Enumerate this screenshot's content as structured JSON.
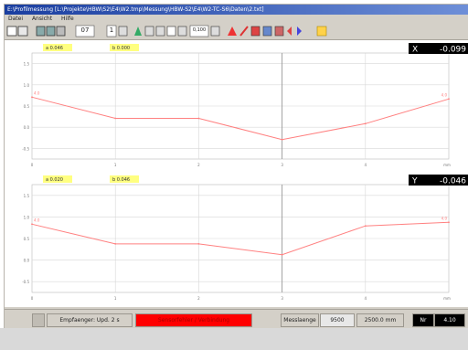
{
  "window": {
    "title": "E:\\Profilmessung [L:\\Projekte\\HBW\\S2\\E4\\W2.tmp\\Messung\\HBW-S2\\E4\\W2-TC-S6\\Daten\\2.txt]",
    "menu": [
      "Datei",
      "Ansicht",
      "Hilfe"
    ]
  },
  "toolbar": {
    "value_label": "1",
    "counter_label": "07",
    "zoom_label": "0,100"
  },
  "plots": [
    {
      "id": "x",
      "readout_axis": "X",
      "readout_value": "-0.099",
      "marker_a": "a 0.046",
      "marker_b": "b 0.000",
      "left_label": "4.0",
      "right_label": "4.0",
      "y_ticks": [
        "1.5",
        "1.0",
        "0.5",
        "0.0",
        "-0.5"
      ],
      "x_ticks": [
        "0",
        "1",
        "2",
        "3",
        "4",
        "mm"
      ]
    },
    {
      "id": "y",
      "readout_axis": "Y",
      "readout_value": "-0.046",
      "marker_a": "a 0.020",
      "marker_b": "b 0.046",
      "left_label": "4.0",
      "right_label": "4.0",
      "y_ticks": [
        "1.5",
        "1.0",
        "0.5",
        "0.0",
        "-0.5"
      ],
      "x_ticks": [
        "0",
        "1",
        "2",
        "3",
        "4",
        "mm"
      ]
    }
  ],
  "chart_data": [
    {
      "type": "line",
      "x": [
        0,
        1,
        2,
        3,
        4,
        5
      ],
      "series": [
        {
          "values": [
            0.75,
            0.15,
            0.15,
            -0.45,
            0.0,
            0.7
          ]
        }
      ],
      "ylim": [
        -1.0,
        2.0
      ],
      "xlim": [
        0,
        5
      ],
      "grid": true
    },
    {
      "type": "line",
      "x": [
        0,
        1,
        2,
        3,
        4,
        5
      ],
      "series": [
        {
          "values": [
            0.9,
            0.35,
            0.35,
            0.05,
            0.85,
            0.95
          ]
        }
      ],
      "ylim": [
        -1.0,
        2.0
      ],
      "xlim": [
        0,
        5
      ],
      "grid": true
    }
  ],
  "status": {
    "receiver_label": "Empfaenger: Upd. 2 s",
    "alarm_text": "Sensorfehler / Verbindung",
    "length_label": "Messlaenge",
    "length_value": "9500",
    "length_mm": "2500.0 mm",
    "axis_label": "Nr",
    "axis_value": "4.10"
  },
  "colors": {
    "curve": "#ff8080",
    "grid": "#d8d8d8",
    "readout_bg": "#000000",
    "readout_fg": "#ffffff",
    "marker_bg": "#ffff80",
    "alarm": "#ff0000"
  }
}
